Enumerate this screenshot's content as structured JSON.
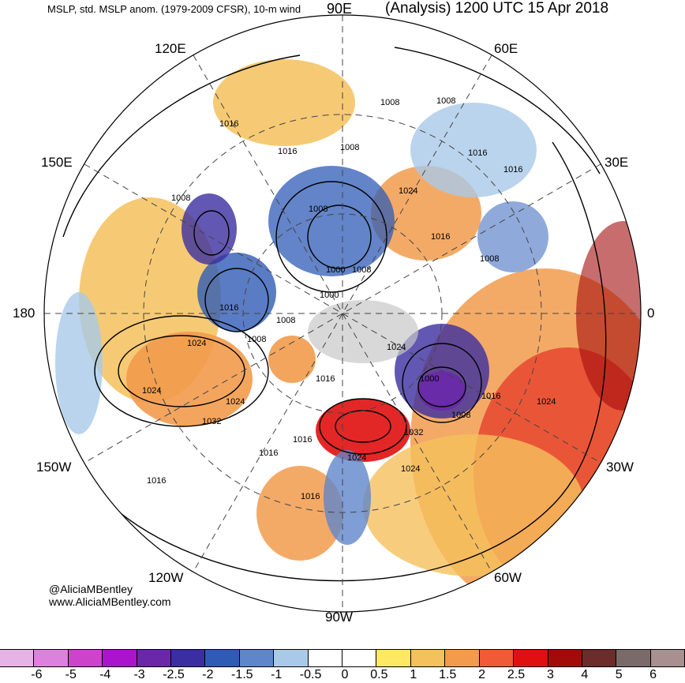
{
  "header": {
    "left_title": "MSLP, std. MSLP anom. (1979-2009 CFSR), 10-m wind",
    "right_title": "(Analysis) 1200 UTC 15 Apr 2018"
  },
  "longitude_labels": {
    "lon_90e": "90E",
    "lon_120e": "120E",
    "lon_60e": "60E",
    "lon_150e": "150E",
    "lon_30e": "30E",
    "lon_180": "180",
    "lon_0": "0",
    "lon_150w": "150W",
    "lon_30w": "30W",
    "lon_120w": "120W",
    "lon_60w": "60W",
    "lon_90w": "90W"
  },
  "credits": {
    "handle": "@AliciaMBentley",
    "website": "www.AliciaMBentley.com"
  },
  "isobar_labels": [
    "1008",
    "1008",
    "1016",
    "1016",
    "1008",
    "1016",
    "1016",
    "1008",
    "1008",
    "1024",
    "1016",
    "1008",
    "1000",
    "1008",
    "1000",
    "1016",
    "1008",
    "1008",
    "1024",
    "1016",
    "1000",
    "1024",
    "1024",
    "1024",
    "1032",
    "1016",
    "1016",
    "1032",
    "1016",
    "1024",
    "1016",
    "1024",
    "1016",
    "1024",
    "1008"
  ],
  "colorbar": {
    "colors": [
      "#e6b3e6",
      "#de80de",
      "#cc44cc",
      "#aa14cc",
      "#6a28a8",
      "#3b2ea0",
      "#2f5bb5",
      "#5f86cb",
      "#a9c9e8",
      "#ffffff",
      "#ffffff",
      "#ffe863",
      "#f5c15c",
      "#f29b4c",
      "#f15a36",
      "#e01010",
      "#a30b0b",
      "#6e2b2b",
      "#7a6a6a",
      "#a89090"
    ],
    "tick_labels": [
      "-6",
      "-5",
      "-4",
      "-3",
      "-2.5",
      "-2",
      "-1.5",
      "-1",
      "-0.5",
      "0",
      "0.5",
      "1",
      "1.5",
      "2",
      "2.5",
      "3",
      "4",
      "5",
      "6"
    ]
  },
  "anomaly_palette": {
    "strong_negative": "#6a28a8",
    "negative": "#2f5bb5",
    "weak_negative": "#a9c9e8",
    "weak_positive": "#ffe863",
    "positive": "#f29b4c",
    "strong_positive": "#e01010",
    "land_mask": "#c8c8c8"
  }
}
